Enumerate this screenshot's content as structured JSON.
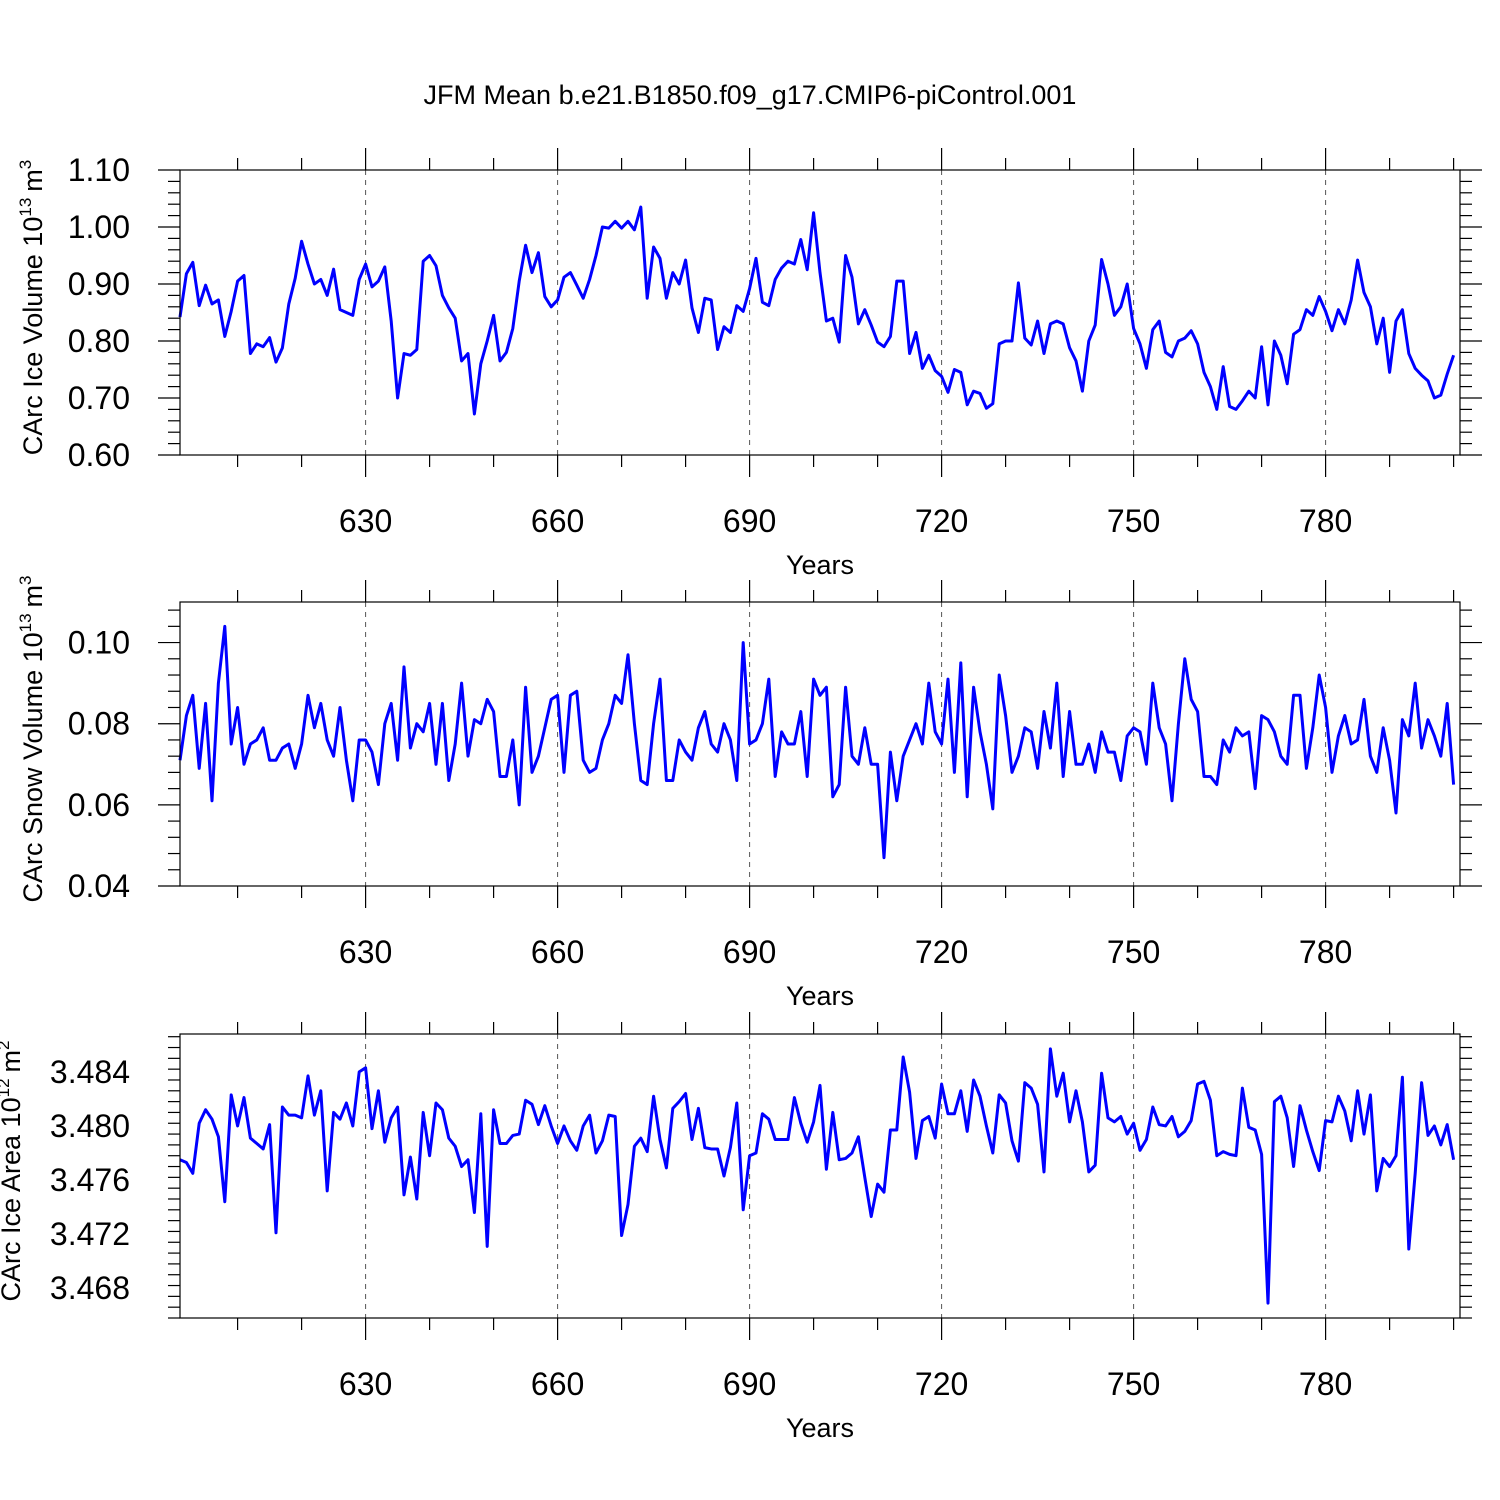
{
  "title": "JFM Mean b.e21.B1850.f09_g17.CMIP6-piControl.001",
  "line_color": "#0000ff",
  "chart_data": [
    {
      "type": "line",
      "ylabel": "CArc Ice Volume",
      "ylabel_unit_base": "10",
      "ylabel_unit_exp": "13",
      "ylabel_unit_m": "m",
      "ylabel_unit_m_exp": "3",
      "xlabel": "Years",
      "xlim": [
        601,
        801
      ],
      "ylim": [
        0.6,
        1.1
      ],
      "xticks": [
        "630",
        "660",
        "690",
        "720",
        "750",
        "780"
      ],
      "xtick_values": [
        630,
        660,
        690,
        720,
        750,
        780
      ],
      "yticks": [
        "1.10",
        "1.00",
        "0.90",
        "0.80",
        "0.70",
        "0.60"
      ],
      "ytick_values": [
        1.1,
        1.0,
        0.9,
        0.8,
        0.7,
        0.6
      ],
      "x_start": 601,
      "values": [
        0.842,
        0.918,
        0.938,
        0.862,
        0.898,
        0.865,
        0.872,
        0.808,
        0.852,
        0.905,
        0.915,
        0.778,
        0.795,
        0.79,
        0.806,
        0.763,
        0.788,
        0.865,
        0.91,
        0.975,
        0.935,
        0.9,
        0.908,
        0.88,
        0.926,
        0.855,
        0.85,
        0.845,
        0.908,
        0.935,
        0.895,
        0.905,
        0.93,
        0.835,
        0.7,
        0.778,
        0.775,
        0.785,
        0.94,
        0.95,
        0.932,
        0.88,
        0.858,
        0.84,
        0.765,
        0.778,
        0.672,
        0.76,
        0.8,
        0.845,
        0.765,
        0.78,
        0.822,
        0.905,
        0.968,
        0.92,
        0.955,
        0.878,
        0.86,
        0.872,
        0.912,
        0.92,
        0.898,
        0.875,
        0.908,
        0.95,
        1.0,
        0.998,
        1.01,
        0.998,
        1.01,
        0.995,
        1.035,
        0.875,
        0.965,
        0.945,
        0.875,
        0.92,
        0.9,
        0.942,
        0.858,
        0.815,
        0.875,
        0.872,
        0.785,
        0.825,
        0.815,
        0.862,
        0.852,
        0.892,
        0.945,
        0.868,
        0.862,
        0.908,
        0.928,
        0.94,
        0.935,
        0.978,
        0.925,
        1.025,
        0.92,
        0.835,
        0.84,
        0.798,
        0.95,
        0.912,
        0.83,
        0.855,
        0.828,
        0.798,
        0.79,
        0.808,
        0.905,
        0.905,
        0.778,
        0.815,
        0.752,
        0.775,
        0.748,
        0.738,
        0.71,
        0.75,
        0.745,
        0.688,
        0.712,
        0.708,
        0.682,
        0.69,
        0.795,
        0.8,
        0.8,
        0.902,
        0.805,
        0.793,
        0.835,
        0.778,
        0.83,
        0.835,
        0.83,
        0.788,
        0.765,
        0.712,
        0.8,
        0.828,
        0.943,
        0.9,
        0.845,
        0.86,
        0.9,
        0.822,
        0.795,
        0.752,
        0.82,
        0.835,
        0.78,
        0.772,
        0.8,
        0.805,
        0.818,
        0.795,
        0.745,
        0.72,
        0.68,
        0.755,
        0.685,
        0.68,
        0.695,
        0.712,
        0.7,
        0.79,
        0.688,
        0.8,
        0.775,
        0.725,
        0.812,
        0.82,
        0.855,
        0.845,
        0.878,
        0.852,
        0.818,
        0.855,
        0.83,
        0.872,
        0.942,
        0.885,
        0.86,
        0.795,
        0.84,
        0.745,
        0.835,
        0.855,
        0.778,
        0.752,
        0.74,
        0.73,
        0.7,
        0.705,
        0.742,
        0.775
      ]
    },
    {
      "type": "line",
      "ylabel": "CArc Snow Volume",
      "ylabel_unit_base": "10",
      "ylabel_unit_exp": "13",
      "ylabel_unit_m": "m",
      "ylabel_unit_m_exp": "3",
      "xlabel": "Years",
      "xlim": [
        601,
        801
      ],
      "ylim": [
        0.04,
        0.11
      ],
      "xticks": [
        "630",
        "660",
        "690",
        "720",
        "750",
        "780"
      ],
      "xtick_values": [
        630,
        660,
        690,
        720,
        750,
        780
      ],
      "yticks": [
        "0.10",
        "0.08",
        "0.06",
        "0.04"
      ],
      "ytick_values": [
        0.1,
        0.08,
        0.06,
        0.04
      ],
      "x_start": 601,
      "values": [
        0.071,
        0.082,
        0.087,
        0.069,
        0.085,
        0.061,
        0.09,
        0.104,
        0.075,
        0.084,
        0.07,
        0.075,
        0.076,
        0.079,
        0.071,
        0.071,
        0.074,
        0.075,
        0.069,
        0.075,
        0.087,
        0.079,
        0.085,
        0.076,
        0.072,
        0.084,
        0.071,
        0.061,
        0.076,
        0.076,
        0.073,
        0.065,
        0.08,
        0.085,
        0.071,
        0.094,
        0.074,
        0.08,
        0.078,
        0.085,
        0.07,
        0.085,
        0.066,
        0.075,
        0.09,
        0.072,
        0.081,
        0.08,
        0.086,
        0.083,
        0.067,
        0.067,
        0.076,
        0.06,
        0.089,
        0.068,
        0.072,
        0.079,
        0.086,
        0.087,
        0.068,
        0.087,
        0.088,
        0.071,
        0.068,
        0.069,
        0.076,
        0.08,
        0.087,
        0.085,
        0.097,
        0.08,
        0.066,
        0.065,
        0.08,
        0.091,
        0.066,
        0.066,
        0.076,
        0.073,
        0.071,
        0.079,
        0.083,
        0.075,
        0.073,
        0.08,
        0.076,
        0.066,
        0.1,
        0.075,
        0.076,
        0.08,
        0.091,
        0.067,
        0.078,
        0.075,
        0.075,
        0.083,
        0.067,
        0.091,
        0.087,
        0.089,
        0.062,
        0.065,
        0.089,
        0.072,
        0.07,
        0.079,
        0.07,
        0.07,
        0.047,
        0.073,
        0.061,
        0.072,
        0.076,
        0.08,
        0.075,
        0.09,
        0.078,
        0.075,
        0.091,
        0.068,
        0.095,
        0.062,
        0.089,
        0.078,
        0.07,
        0.059,
        0.092,
        0.082,
        0.068,
        0.072,
        0.079,
        0.078,
        0.069,
        0.083,
        0.074,
        0.09,
        0.067,
        0.083,
        0.07,
        0.07,
        0.075,
        0.068,
        0.078,
        0.073,
        0.073,
        0.066,
        0.077,
        0.079,
        0.078,
        0.07,
        0.09,
        0.079,
        0.075,
        0.061,
        0.08,
        0.096,
        0.086,
        0.083,
        0.067,
        0.067,
        0.065,
        0.076,
        0.073,
        0.079,
        0.077,
        0.078,
        0.064,
        0.082,
        0.081,
        0.078,
        0.072,
        0.07,
        0.087,
        0.087,
        0.069,
        0.079,
        0.092,
        0.084,
        0.068,
        0.077,
        0.082,
        0.075,
        0.076,
        0.086,
        0.072,
        0.068,
        0.079,
        0.071,
        0.058,
        0.081,
        0.077,
        0.09,
        0.074,
        0.081,
        0.077,
        0.072,
        0.085,
        0.065
      ]
    },
    {
      "type": "line",
      "ylabel": "CArc Ice Area",
      "ylabel_unit_base": "10",
      "ylabel_unit_exp": "12",
      "ylabel_unit_m": "m",
      "ylabel_unit_m_exp": "2",
      "xlabel": "Years",
      "xlim": [
        601,
        801
      ],
      "ylim": [
        3.4658,
        3.4868
      ],
      "xticks": [
        "630",
        "660",
        "690",
        "720",
        "750",
        "780"
      ],
      "xtick_values": [
        630,
        660,
        690,
        720,
        750,
        780
      ],
      "yticks": [
        "3.484",
        "3.480",
        "3.476",
        "3.472",
        "3.468"
      ],
      "ytick_values": [
        3.484,
        3.48,
        3.476,
        3.472,
        3.468
      ],
      "x_start": 601,
      "values": [
        3.4775,
        3.4773,
        3.4765,
        3.4802,
        3.4812,
        3.4805,
        3.4792,
        3.4744,
        3.4823,
        3.48,
        3.4821,
        3.4791,
        3.4787,
        3.4783,
        3.4801,
        3.4721,
        3.4814,
        3.4808,
        3.4808,
        3.4806,
        3.4837,
        3.4808,
        3.4826,
        3.4752,
        3.481,
        3.4805,
        3.4817,
        3.48,
        3.484,
        3.4843,
        3.4798,
        3.4826,
        3.4788,
        3.4806,
        3.4814,
        3.4749,
        3.4777,
        3.4746,
        3.481,
        3.4778,
        3.4817,
        3.4812,
        3.4791,
        3.4785,
        3.477,
        3.4775,
        3.4736,
        3.4809,
        3.4711,
        3.4812,
        3.4787,
        3.4787,
        3.4793,
        3.4794,
        3.4819,
        3.4816,
        3.4801,
        3.4815,
        3.48,
        3.4787,
        3.48,
        3.4789,
        3.4782,
        3.48,
        3.4808,
        3.478,
        3.4789,
        3.4808,
        3.4807,
        3.4719,
        3.4742,
        3.4785,
        3.4791,
        3.4781,
        3.4822,
        3.479,
        3.4769,
        3.4813,
        3.4818,
        3.4824,
        3.479,
        3.4813,
        3.4784,
        3.4783,
        3.4783,
        3.4763,
        3.4784,
        3.4817,
        3.4738,
        3.4778,
        3.478,
        3.4809,
        3.4805,
        3.479,
        3.479,
        3.479,
        3.4821,
        3.4802,
        3.4788,
        3.4803,
        3.483,
        3.4768,
        3.481,
        3.4775,
        3.4776,
        3.478,
        3.4792,
        3.4762,
        3.4733,
        3.4757,
        3.4751,
        3.4797,
        3.4797,
        3.4851,
        3.4825,
        3.4776,
        3.4804,
        3.4807,
        3.4791,
        3.4831,
        3.4809,
        3.4809,
        3.4826,
        3.4796,
        3.4834,
        3.4822,
        3.48,
        3.478,
        3.4823,
        3.4817,
        3.4789,
        3.4774,
        3.4832,
        3.4828,
        3.4816,
        3.4766,
        3.4857,
        3.4822,
        3.4839,
        3.4803,
        3.4826,
        3.4803,
        3.4766,
        3.4771,
        3.4839,
        3.4806,
        3.4803,
        3.4807,
        3.4794,
        3.4802,
        3.4782,
        3.479,
        3.4814,
        3.4801,
        3.48,
        3.4807,
        3.4792,
        3.4796,
        3.4804,
        3.4831,
        3.4833,
        3.4819,
        3.4778,
        3.4781,
        3.4779,
        3.4778,
        3.4828,
        3.4799,
        3.4797,
        3.4779,
        3.4669,
        3.4818,
        3.4822,
        3.4806,
        3.477,
        3.4815,
        3.4797,
        3.4781,
        3.4767,
        3.4804,
        3.4803,
        3.4822,
        3.4811,
        3.4789,
        3.4826,
        3.4794,
        3.4823,
        3.4752,
        3.4776,
        3.477,
        3.4778,
        3.4836,
        3.4709,
        3.4765,
        3.4832,
        3.4793,
        3.48,
        3.4786,
        3.4801,
        3.4775
      ]
    }
  ]
}
